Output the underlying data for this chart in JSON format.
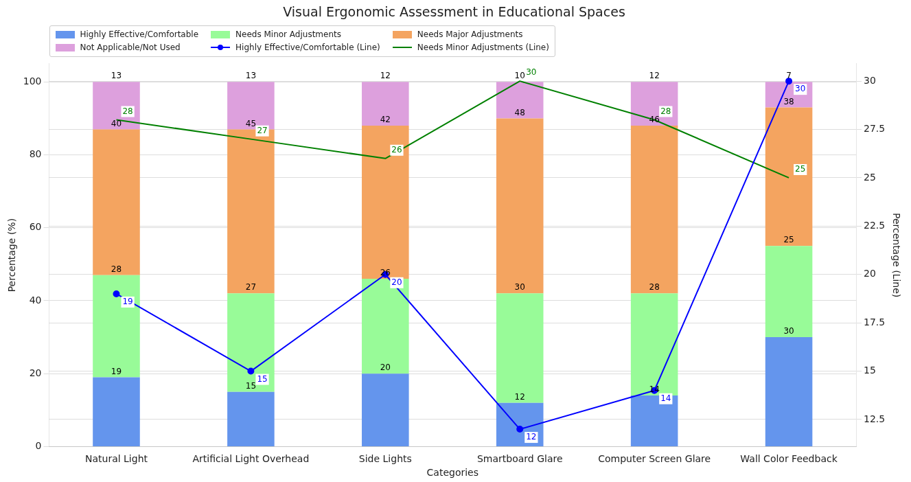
{
  "chart_data": {
    "type": "bar",
    "title": "Visual Ergonomic Assessment in Educational Spaces",
    "xlabel": "Categories",
    "ylabel": "Percentage (%)",
    "y2label": "Percentage (Line)",
    "categories": [
      "Natural Light",
      "Artificial Light Overhead",
      "Side Lights",
      "Smartboard Glare",
      "Computer Screen Glare",
      "Wall Color Feedback"
    ],
    "stacked": true,
    "grid": "y",
    "legend": "top left",
    "data_labels": true,
    "ylim": [
      0,
      105
    ],
    "yticks": [
      0,
      20,
      40,
      60,
      80,
      100
    ],
    "y2lim": [
      11.1,
      30.9
    ],
    "y2ticks": [
      12.5,
      15,
      17.5,
      20,
      22.5,
      25,
      27.5,
      30
    ],
    "series": [
      {
        "name": "Highly Effective/Comfortable",
        "color": "#6495ed",
        "values": [
          19,
          15,
          20,
          12,
          14,
          30
        ]
      },
      {
        "name": "Needs Minor Adjustments",
        "color": "#98fb98",
        "values": [
          28,
          27,
          26,
          30,
          28,
          25
        ]
      },
      {
        "name": "Needs Major Adjustments",
        "color": "#f4a460",
        "values": [
          40,
          45,
          42,
          48,
          46,
          38
        ]
      },
      {
        "name": "Not Applicable/Not Used",
        "color": "#dda0dd",
        "values": [
          13,
          13,
          12,
          10,
          12,
          7
        ]
      },
      {
        "name": "Highly Effective/Comfortable (Line)",
        "type": "line",
        "axis": "y2",
        "marker": "circle",
        "color": "#0000ff",
        "values": [
          19,
          15,
          20,
          12,
          14,
          30
        ]
      },
      {
        "name": "Needs Minor Adjustments (Line)",
        "type": "line",
        "axis": "y2",
        "marker": "none",
        "color": "#008000",
        "values": [
          28,
          27,
          26,
          30,
          28,
          25
        ]
      }
    ]
  }
}
